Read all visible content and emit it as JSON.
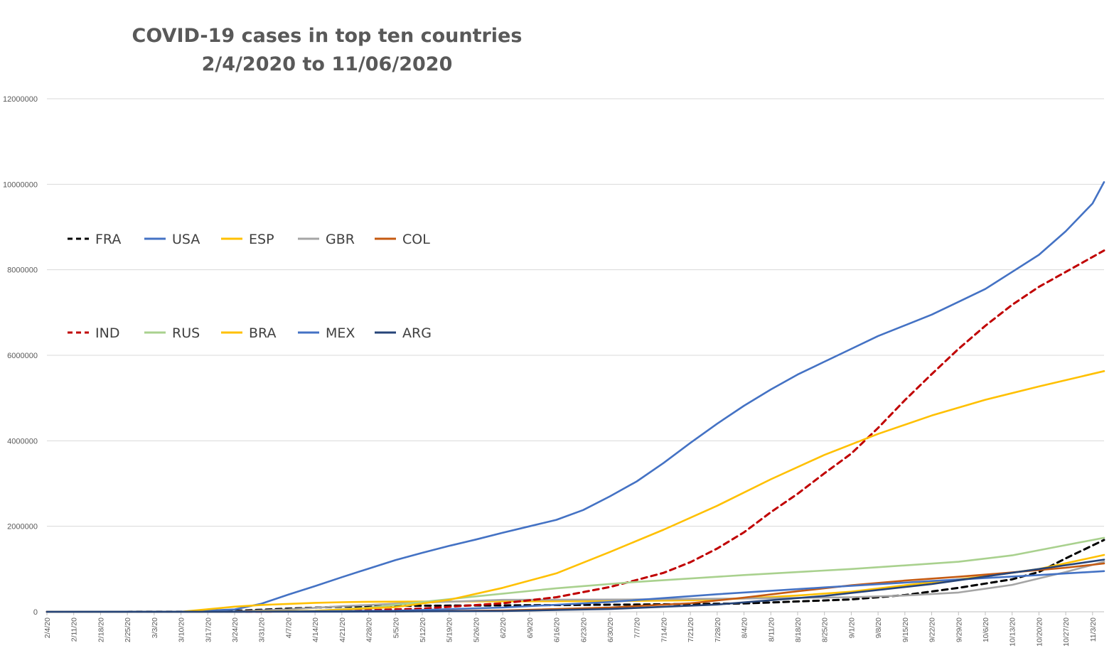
{
  "chart_data": {
    "type": "line",
    "title": "COVID-19 cases in top ten countries",
    "subtitle": "2/4/2020 to 11/06/2020",
    "xlabel": "",
    "ylabel": "",
    "x_start": "2020-02-04",
    "x_end": "2020-11-06",
    "ylim": [
      0,
      12000000
    ],
    "yticks": [
      0,
      2000000,
      4000000,
      6000000,
      8000000,
      10000000,
      12000000
    ],
    "xtick_labels": [
      "2/4/20",
      "2/11/20",
      "2/18/20",
      "2/25/20",
      "3/3/20",
      "3/10/20",
      "3/17/20",
      "3/24/20",
      "3/31/20",
      "4/7/20",
      "4/14/20",
      "4/21/20",
      "4/28/20",
      "5/5/20",
      "5/12/20",
      "5/19/20",
      "5/26/20",
      "6/2/20",
      "6/9/20",
      "6/16/20",
      "6/23/20",
      "6/30/20",
      "7/7/20",
      "7/14/20",
      "7/21/20",
      "7/28/20",
      "8/4/20",
      "8/11/20",
      "8/18/20",
      "8/25/20",
      "9/1/20",
      "9/8/20",
      "9/15/20",
      "9/22/20",
      "9/29/20",
      "10/6/20",
      "10/13/20",
      "10/20/20",
      "10/27/20",
      "11/3/20"
    ],
    "grid": true,
    "legend_position": "left",
    "series": [
      {
        "name": "FRA",
        "color": "#000000",
        "dash": true,
        "x": [
          "2020-02-04",
          "2020-03-10",
          "2020-03-24",
          "2020-04-07",
          "2020-04-21",
          "2020-05-05",
          "2020-06-02",
          "2020-07-07",
          "2020-08-04",
          "2020-09-01",
          "2020-09-15",
          "2020-09-29",
          "2020-10-13",
          "2020-10-20",
          "2020-10-27",
          "2020-11-06"
        ],
        "values": [
          0,
          1800,
          22000,
          75000,
          120000,
          140000,
          150000,
          170000,
          195000,
          290000,
          390000,
          560000,
          760000,
          930000,
          1250000,
          1680000
        ]
      },
      {
        "name": "USA",
        "color": "#4472C4",
        "dash": false,
        "x": [
          "2020-02-04",
          "2020-03-10",
          "2020-03-24",
          "2020-03-31",
          "2020-04-07",
          "2020-04-14",
          "2020-04-21",
          "2020-04-28",
          "2020-05-05",
          "2020-05-12",
          "2020-05-19",
          "2020-05-26",
          "2020-06-02",
          "2020-06-09",
          "2020-06-16",
          "2020-06-23",
          "2020-06-30",
          "2020-07-07",
          "2020-07-14",
          "2020-07-21",
          "2020-07-28",
          "2020-08-04",
          "2020-08-11",
          "2020-08-18",
          "2020-08-25",
          "2020-09-01",
          "2020-09-08",
          "2020-09-15",
          "2020-09-22",
          "2020-09-29",
          "2020-10-06",
          "2020-10-13",
          "2020-10-20",
          "2020-10-27",
          "2020-11-03",
          "2020-11-06"
        ],
        "values": [
          0,
          1000,
          55000,
          190000,
          400000,
          600000,
          810000,
          1010000,
          1210000,
          1380000,
          1540000,
          1690000,
          1850000,
          2000000,
          2150000,
          2380000,
          2700000,
          3050000,
          3480000,
          3950000,
          4400000,
          4820000,
          5200000,
          5550000,
          5850000,
          6150000,
          6450000,
          6700000,
          6950000,
          7250000,
          7550000,
          7950000,
          8350000,
          8900000,
          9550000,
          10050000
        ]
      },
      {
        "name": "ESP",
        "color": "#FFC000",
        "dash": false,
        "x": [
          "2020-02-04",
          "2020-03-03",
          "2020-03-10",
          "2020-03-17",
          "2020-03-24",
          "2020-03-31",
          "2020-04-07",
          "2020-04-14",
          "2020-04-21",
          "2020-04-28",
          "2020-05-12",
          "2020-06-02",
          "2020-06-30",
          "2020-07-21",
          "2020-08-04",
          "2020-08-18",
          "2020-09-01",
          "2020-09-15",
          "2020-10-06",
          "2020-10-20",
          "2020-11-06"
        ],
        "values": [
          0,
          200,
          1700,
          60000,
          120000,
          160000,
          185000,
          210000,
          225000,
          235000,
          240000,
          245000,
          250000,
          270000,
          310000,
          380000,
          470000,
          620000,
          830000,
          1000000,
          1330000
        ]
      },
      {
        "name": "GBR",
        "color": "#A5A5A5",
        "dash": false,
        "x": [
          "2020-02-04",
          "2020-03-10",
          "2020-03-24",
          "2020-04-07",
          "2020-04-21",
          "2020-05-05",
          "2020-06-02",
          "2020-07-07",
          "2020-08-04",
          "2020-09-01",
          "2020-09-15",
          "2020-09-29",
          "2020-10-13",
          "2020-10-27",
          "2020-11-06"
        ],
        "values": [
          0,
          300,
          8000,
          55000,
          130000,
          190000,
          280000,
          290000,
          310000,
          340000,
          380000,
          450000,
          630000,
          930000,
          1170000
        ]
      },
      {
        "name": "COL",
        "color": "#C55A11",
        "dash": false,
        "x": [
          "2020-02-04",
          "2020-03-24",
          "2020-05-05",
          "2020-06-02",
          "2020-06-30",
          "2020-07-21",
          "2020-08-04",
          "2020-08-18",
          "2020-09-01",
          "2020-09-15",
          "2020-09-29",
          "2020-10-13",
          "2020-10-27",
          "2020-11-06"
        ],
        "values": [
          0,
          300,
          9000,
          30000,
          100000,
          200000,
          330000,
          480000,
          620000,
          730000,
          820000,
          920000,
          1030000,
          1130000
        ]
      },
      {
        "name": "IND",
        "color": "#C00000",
        "dash": true,
        "x": [
          "2020-02-04",
          "2020-03-24",
          "2020-04-21",
          "2020-05-12",
          "2020-06-02",
          "2020-06-16",
          "2020-06-30",
          "2020-07-14",
          "2020-07-21",
          "2020-07-28",
          "2020-08-04",
          "2020-08-11",
          "2020-08-18",
          "2020-08-25",
          "2020-09-01",
          "2020-09-08",
          "2020-09-15",
          "2020-09-22",
          "2020-09-29",
          "2020-10-06",
          "2020-10-13",
          "2020-10-20",
          "2020-10-27",
          "2020-11-06"
        ],
        "values": [
          0,
          500,
          20000,
          75000,
          200000,
          340000,
          580000,
          910000,
          1160000,
          1480000,
          1860000,
          2330000,
          2760000,
          3240000,
          3700000,
          4300000,
          4950000,
          5560000,
          6150000,
          6690000,
          7180000,
          7600000,
          7950000,
          8450000
        ]
      },
      {
        "name": "RUS",
        "color": "#A9D18E",
        "dash": false,
        "x": [
          "2020-02-04",
          "2020-03-24",
          "2020-04-14",
          "2020-04-28",
          "2020-05-12",
          "2020-05-26",
          "2020-06-16",
          "2020-07-07",
          "2020-08-04",
          "2020-09-01",
          "2020-09-29",
          "2020-10-13",
          "2020-10-27",
          "2020-11-06"
        ],
        "values": [
          0,
          500,
          22000,
          95000,
          230000,
          360000,
          550000,
          700000,
          860000,
          1000000,
          1170000,
          1320000,
          1560000,
          1730000
        ]
      },
      {
        "name": "BRA",
        "color": "#FFC000",
        "dash": false,
        "x": [
          "2020-02-04",
          "2020-03-24",
          "2020-04-14",
          "2020-05-05",
          "2020-05-19",
          "2020-06-02",
          "2020-06-16",
          "2020-06-30",
          "2020-07-14",
          "2020-07-28",
          "2020-08-11",
          "2020-08-25",
          "2020-09-08",
          "2020-09-22",
          "2020-10-06",
          "2020-10-20",
          "2020-11-06"
        ],
        "values": [
          0,
          2000,
          25000,
          110000,
          280000,
          560000,
          900000,
          1400000,
          1920000,
          2480000,
          3100000,
          3670000,
          4160000,
          4590000,
          4960000,
          5270000,
          5630000
        ]
      },
      {
        "name": "MEX",
        "color": "#4472C4",
        "dash": false,
        "x": [
          "2020-02-04",
          "2020-03-24",
          "2020-05-05",
          "2020-06-02",
          "2020-06-30",
          "2020-07-28",
          "2020-08-25",
          "2020-09-22",
          "2020-10-20",
          "2020-11-06"
        ],
        "values": [
          0,
          400,
          25000,
          100000,
          230000,
          410000,
          570000,
          720000,
          860000,
          950000
        ]
      },
      {
        "name": "ARG",
        "color": "#264478",
        "dash": false,
        "x": [
          "2020-02-04",
          "2020-04-21",
          "2020-06-02",
          "2020-06-30",
          "2020-07-28",
          "2020-08-25",
          "2020-09-22",
          "2020-10-20",
          "2020-11-06"
        ],
        "values": [
          0,
          3000,
          18000,
          65000,
          170000,
          370000,
          650000,
          1000000,
          1220000
        ]
      }
    ]
  }
}
